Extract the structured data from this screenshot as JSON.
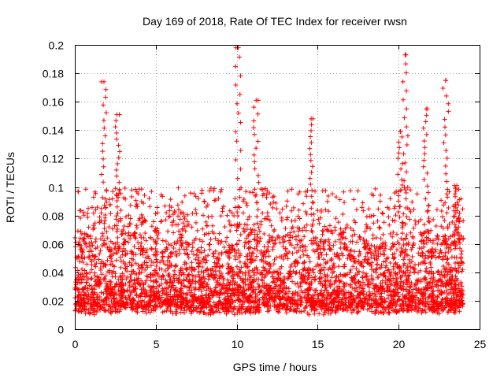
{
  "chart_data": {
    "type": "scatter",
    "title": "Day 169 of 2018, Rate Of TEC Index for receiver rwsn",
    "xlabel": "GPS time / hours",
    "ylabel": "ROTI / TECUs",
    "xlim": [
      0,
      25
    ],
    "ylim": [
      0,
      0.2
    ],
    "xticks": [
      0,
      5,
      10,
      15,
      20,
      25
    ],
    "yticks": [
      0,
      0.02,
      0.04,
      0.06,
      0.08,
      0.1,
      0.12,
      0.14,
      0.16,
      0.18,
      0.2
    ],
    "xtick_labels": [
      "0",
      "5",
      "10",
      "15",
      "20",
      "25"
    ],
    "ytick_labels": [
      "0",
      "0.02",
      "0.04",
      "0.06",
      "0.08",
      "0.1",
      "0.12",
      "0.14",
      "0.16",
      "0.18",
      "0.2"
    ],
    "grid": true,
    "marker": "+",
    "series": [
      {
        "name": "rwsn",
        "color": "#ff0000",
        "x_range": [
          0,
          24
        ],
        "typical_y_range": [
          0.01,
          0.08
        ],
        "peaks": [
          {
            "x": 1.8,
            "y": 0.174
          },
          {
            "x": 2.6,
            "y": 0.151
          },
          {
            "x": 10.1,
            "y": 0.198
          },
          {
            "x": 11.2,
            "y": 0.161
          },
          {
            "x": 14.6,
            "y": 0.148
          },
          {
            "x": 20.1,
            "y": 0.139
          },
          {
            "x": 20.4,
            "y": 0.193
          },
          {
            "x": 21.7,
            "y": 0.155
          },
          {
            "x": 22.9,
            "y": 0.175
          },
          {
            "x": 23.6,
            "y": 0.101
          }
        ]
      }
    ]
  }
}
